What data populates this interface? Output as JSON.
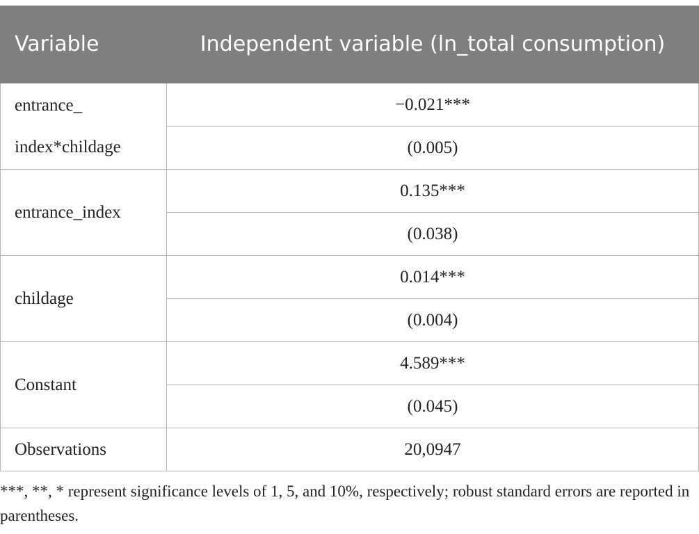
{
  "header": {
    "variable_label": "Variable",
    "dependent_label": "Independent variable (ln_total consumption)"
  },
  "rows": [
    {
      "variable_line1": "entrance_",
      "variable_line2": "index*childage",
      "coef": "−0.021***",
      "se": "(0.005)"
    },
    {
      "variable": "entrance_index",
      "coef": "0.135***",
      "se": "(0.038)"
    },
    {
      "variable": "childage",
      "coef": "0.014***",
      "se": "(0.004)"
    },
    {
      "variable": "Constant",
      "coef": "4.589***",
      "se": "(0.045)"
    }
  ],
  "observations": {
    "label": "Observations",
    "value": "20,0947"
  },
  "note": "***, **, * represent significance levels of 1, 5, and 10%, respectively; robust standard errors are reported in parentheses."
}
